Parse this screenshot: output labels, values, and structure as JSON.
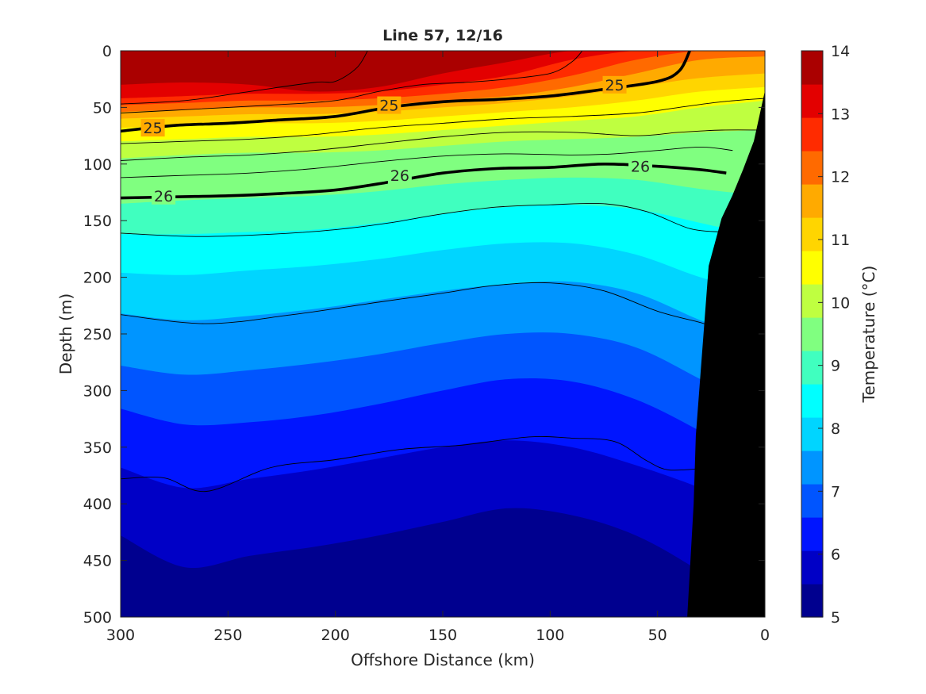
{
  "chart_data": {
    "type": "contour",
    "title": "Line 57, 12/16",
    "xlabel": "Offshore Distance (km)",
    "ylabel": "Depth (m)",
    "colorbar_label": "Temperature (°C)",
    "xlim": [
      300,
      0
    ],
    "ylim": [
      0,
      500
    ],
    "x_ticks": [
      "300",
      "250",
      "200",
      "150",
      "100",
      "50",
      "0"
    ],
    "y_ticks": [
      "0",
      "50",
      "100",
      "150",
      "200",
      "250",
      "300",
      "350",
      "400",
      "450",
      "500"
    ],
    "colorbar_ticks": [
      "5",
      "6",
      "7",
      "8",
      "9",
      "10",
      "11",
      "12",
      "13",
      "14"
    ],
    "colorbar_range": [
      5,
      14
    ],
    "colormap": [
      "#00008f",
      "#0000c6",
      "#0015ff",
      "#0055ff",
      "#0095ff",
      "#00d5ff",
      "#00ffff",
      "#40ffbf",
      "#80ff80",
      "#bfff40",
      "#ffff00",
      "#ffd500",
      "#ffaa00",
      "#ff6a00",
      "#ff2b00",
      "#e30000",
      "#aa0000"
    ],
    "temperature_levels": [
      5,
      5.5,
      6,
      6.5,
      7,
      7.5,
      8,
      8.5,
      9,
      9.5,
      10,
      10.5,
      11,
      11.5,
      12,
      12.5,
      13,
      13.5,
      14
    ],
    "temperature_contours": {
      "distance_km": [
        300,
        270,
        240,
        210,
        180,
        150,
        120,
        90,
        60,
        30,
        0
      ],
      "isotherms": [
        {
          "temp": 13.5,
          "depth": [
            30,
            28,
            30,
            36,
            32,
            20,
            10,
            0,
            0,
            0,
            0
          ]
        },
        {
          "temp": 13,
          "depth": [
            42,
            40,
            38,
            38,
            36,
            30,
            22,
            8,
            0,
            0,
            0
          ]
        },
        {
          "temp": 12.5,
          "depth": [
            48,
            46,
            44,
            44,
            42,
            38,
            32,
            22,
            8,
            0,
            0
          ]
        },
        {
          "temp": 12,
          "depth": [
            54,
            52,
            50,
            50,
            48,
            44,
            40,
            32,
            20,
            8,
            5
          ]
        },
        {
          "temp": 11.5,
          "depth": [
            60,
            58,
            56,
            56,
            54,
            50,
            46,
            40,
            32,
            24,
            20
          ]
        },
        {
          "temp": 11,
          "depth": [
            68,
            66,
            64,
            64,
            62,
            58,
            54,
            50,
            44,
            36,
            32
          ]
        },
        {
          "temp": 10.5,
          "depth": [
            80,
            78,
            76,
            76,
            74,
            70,
            66,
            62,
            58,
            50,
            44
          ]
        },
        {
          "temp": 10,
          "depth": [
            95,
            92,
            90,
            90,
            88,
            84,
            80,
            78,
            76,
            72,
            70
          ]
        },
        {
          "temp": 9.5,
          "depth": [
            112,
            110,
            108,
            108,
            104,
            98,
            94,
            92,
            92,
            96,
            100
          ]
        },
        {
          "temp": 9,
          "depth": [
            135,
            132,
            130,
            128,
            124,
            118,
            114,
            112,
            114,
            122,
            128
          ]
        },
        {
          "temp": 8.5,
          "depth": [
            162,
            162,
            160,
            158,
            152,
            144,
            138,
            136,
            140,
            152,
            165
          ]
        },
        {
          "temp": 8,
          "depth": [
            196,
            198,
            194,
            190,
            184,
            176,
            170,
            170,
            180,
            200,
            215
          ]
        },
        {
          "temp": 7.5,
          "depth": [
            232,
            238,
            234,
            228,
            220,
            212,
            206,
            204,
            214,
            238,
            260
          ]
        },
        {
          "temp": 7,
          "depth": [
            278,
            286,
            282,
            276,
            268,
            258,
            250,
            250,
            262,
            290,
            320
          ]
        },
        {
          "temp": 6.5,
          "depth": [
            316,
            330,
            328,
            322,
            312,
            300,
            290,
            292,
            308,
            336,
            370
          ]
        },
        {
          "temp": 6,
          "depth": [
            368,
            386,
            378,
            370,
            360,
            350,
            344,
            350,
            366,
            386,
            410
          ]
        },
        {
          "temp": 5.5,
          "depth": [
            428,
            456,
            446,
            438,
            428,
            416,
            404,
            410,
            428,
            460,
            500
          ]
        },
        {
          "temp": 5,
          "depth": [
            501,
            501,
            501,
            501,
            501,
            485,
            476,
            490,
            501,
            501,
            501
          ]
        }
      ]
    },
    "density_contours": [
      {
        "label": "25",
        "bold": true,
        "points": [
          [
            300,
            71
          ],
          [
            275,
            66
          ],
          [
            250,
            64
          ],
          [
            225,
            61
          ],
          [
            200,
            58
          ],
          [
            175,
            50
          ],
          [
            150,
            45
          ],
          [
            125,
            43
          ],
          [
            100,
            40
          ],
          [
            75,
            34
          ],
          [
            50,
            27
          ],
          [
            40,
            18
          ],
          [
            35,
            0
          ]
        ],
        "label_positions": [
          [
            285,
            68
          ],
          [
            175,
            48
          ],
          [
            70,
            30
          ]
        ]
      },
      {
        "label": "26",
        "bold": true,
        "points": [
          [
            300,
            130
          ],
          [
            275,
            129
          ],
          [
            250,
            128
          ],
          [
            225,
            126
          ],
          [
            200,
            123
          ],
          [
            175,
            116
          ],
          [
            150,
            108
          ],
          [
            125,
            104
          ],
          [
            100,
            103
          ],
          [
            75,
            100
          ],
          [
            50,
            102
          ],
          [
            30,
            105
          ],
          [
            18,
            108
          ]
        ],
        "label_positions": [
          [
            280,
            128
          ],
          [
            170,
            110
          ],
          [
            58,
            102
          ]
        ]
      },
      {
        "label": "",
        "bold": false,
        "points": [
          [
            300,
            47
          ],
          [
            270,
            44
          ],
          [
            240,
            36
          ],
          [
            210,
            28
          ],
          [
            200,
            27
          ],
          [
            190,
            15
          ],
          [
            185,
            0
          ]
        ]
      },
      {
        "label": "",
        "bold": false,
        "points": [
          [
            300,
            55
          ],
          [
            270,
            52
          ],
          [
            230,
            48
          ],
          [
            200,
            44
          ],
          [
            180,
            36
          ],
          [
            160,
            30
          ],
          [
            140,
            28
          ],
          [
            120,
            25
          ],
          [
            100,
            20
          ],
          [
            90,
            10
          ],
          [
            85,
            0
          ]
        ]
      },
      {
        "label": "",
        "bold": false,
        "points": [
          [
            300,
            82
          ],
          [
            270,
            80
          ],
          [
            240,
            78
          ],
          [
            210,
            74
          ],
          [
            180,
            68
          ],
          [
            150,
            64
          ],
          [
            120,
            60
          ],
          [
            90,
            58
          ],
          [
            60,
            55
          ],
          [
            40,
            50
          ],
          [
            20,
            45
          ],
          [
            0,
            42
          ]
        ]
      },
      {
        "label": "",
        "bold": false,
        "points": [
          [
            300,
            97
          ],
          [
            270,
            94
          ],
          [
            240,
            92
          ],
          [
            210,
            88
          ],
          [
            180,
            82
          ],
          [
            150,
            76
          ],
          [
            120,
            72
          ],
          [
            90,
            72
          ],
          [
            60,
            75
          ],
          [
            40,
            72
          ],
          [
            20,
            70
          ],
          [
            0,
            70
          ]
        ]
      },
      {
        "label": "",
        "bold": false,
        "points": [
          [
            300,
            112
          ],
          [
            270,
            110
          ],
          [
            240,
            108
          ],
          [
            210,
            104
          ],
          [
            180,
            98
          ],
          [
            150,
            93
          ],
          [
            120,
            91
          ],
          [
            90,
            92
          ],
          [
            70,
            91
          ],
          [
            50,
            88
          ],
          [
            30,
            85
          ],
          [
            15,
            88
          ]
        ]
      },
      {
        "label": "",
        "bold": false,
        "points": [
          [
            300,
            161
          ],
          [
            265,
            164
          ],
          [
            230,
            162
          ],
          [
            200,
            158
          ],
          [
            175,
            152
          ],
          [
            150,
            144
          ],
          [
            125,
            138
          ],
          [
            100,
            136
          ],
          [
            75,
            135
          ],
          [
            55,
            142
          ],
          [
            35,
            157
          ],
          [
            20,
            160
          ]
        ]
      },
      {
        "label": "",
        "bold": false,
        "points": [
          [
            300,
            233
          ],
          [
            260,
            241
          ],
          [
            220,
            233
          ],
          [
            180,
            222
          ],
          [
            150,
            214
          ],
          [
            125,
            207
          ],
          [
            100,
            205
          ],
          [
            75,
            212
          ],
          [
            50,
            230
          ],
          [
            30,
            240
          ],
          [
            26,
            243
          ]
        ]
      },
      {
        "label": "",
        "bold": false,
        "points": [
          [
            300,
            378
          ],
          [
            280,
            377
          ],
          [
            260,
            389
          ],
          [
            230,
            368
          ],
          [
            200,
            361
          ],
          [
            170,
            352
          ],
          [
            140,
            348
          ],
          [
            110,
            341
          ],
          [
            90,
            342
          ],
          [
            70,
            345
          ],
          [
            55,
            362
          ],
          [
            45,
            370
          ],
          [
            30,
            369
          ]
        ]
      }
    ],
    "shelf_outline_km_depth": [
      [
        36,
        500
      ],
      [
        33,
        400
      ],
      [
        32,
        340
      ],
      [
        26,
        190
      ],
      [
        20,
        148
      ],
      [
        15,
        128
      ],
      [
        10,
        105
      ],
      [
        5,
        80
      ],
      [
        0,
        37
      ],
      [
        0,
        500
      ]
    ],
    "shelf_color": "#000000"
  }
}
